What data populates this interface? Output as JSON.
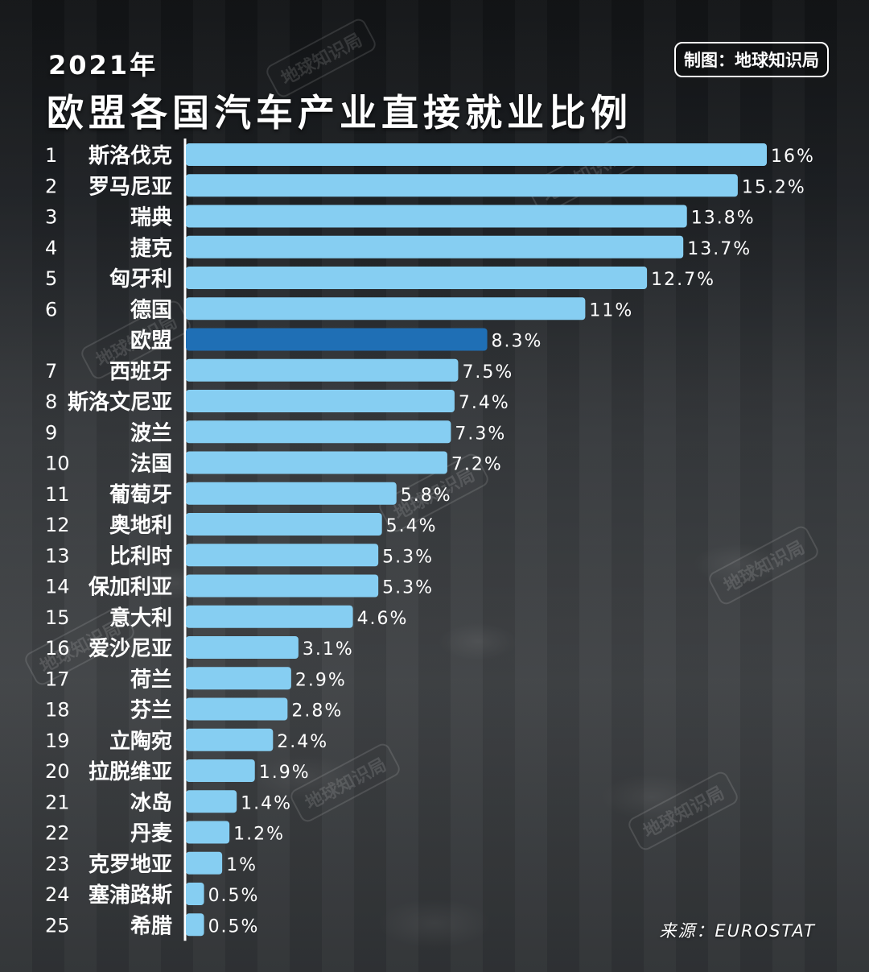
{
  "header": {
    "year": "2021年",
    "title": "欧盟各国汽车产业直接就业比例",
    "credit": "制图：地球知识局"
  },
  "footer": {
    "source": "来源：EUROSTAT"
  },
  "watermark_text": "地球知识局",
  "colors": {
    "bar": "#86cef2",
    "bar_highlight": "#1f6fb5",
    "axis_line": "#ffffff",
    "text": "#ffffff"
  },
  "chart_data": {
    "type": "bar",
    "orientation": "horizontal",
    "title": "欧盟各国汽车产业直接就业比例",
    "xlabel": "",
    "ylabel": "",
    "xlim": [
      0,
      16
    ],
    "unit": "%",
    "highlight": "欧盟",
    "rows": [
      {
        "rank": "1",
        "name": "斯洛伐克",
        "value": 16,
        "label": "16%"
      },
      {
        "rank": "2",
        "name": "罗马尼亚",
        "value": 15.2,
        "label": "15.2%"
      },
      {
        "rank": "3",
        "name": "瑞典",
        "value": 13.8,
        "label": "13.8%"
      },
      {
        "rank": "4",
        "name": "捷克",
        "value": 13.7,
        "label": "13.7%"
      },
      {
        "rank": "5",
        "name": "匈牙利",
        "value": 12.7,
        "label": "12.7%"
      },
      {
        "rank": "6",
        "name": "德国",
        "value": 11,
        "label": "11%"
      },
      {
        "rank": "",
        "name": "欧盟",
        "value": 8.3,
        "label": "8.3%"
      },
      {
        "rank": "7",
        "name": "西班牙",
        "value": 7.5,
        "label": "7.5%"
      },
      {
        "rank": "8",
        "name": "斯洛文尼亚",
        "value": 7.4,
        "label": "7.4%"
      },
      {
        "rank": "9",
        "name": "波兰",
        "value": 7.3,
        "label": "7.3%"
      },
      {
        "rank": "10",
        "name": "法国",
        "value": 7.2,
        "label": "7.2%"
      },
      {
        "rank": "11",
        "name": "葡萄牙",
        "value": 5.8,
        "label": "5.8%"
      },
      {
        "rank": "12",
        "name": "奥地利",
        "value": 5.4,
        "label": "5.4%"
      },
      {
        "rank": "13",
        "name": "比利时",
        "value": 5.3,
        "label": "5.3%"
      },
      {
        "rank": "14",
        "name": "保加利亚",
        "value": 5.3,
        "label": "5.3%"
      },
      {
        "rank": "15",
        "name": "意大利",
        "value": 4.6,
        "label": "4.6%"
      },
      {
        "rank": "16",
        "name": "爱沙尼亚",
        "value": 3.1,
        "label": "3.1%"
      },
      {
        "rank": "17",
        "name": "荷兰",
        "value": 2.9,
        "label": "2.9%"
      },
      {
        "rank": "18",
        "name": "芬兰",
        "value": 2.8,
        "label": "2.8%"
      },
      {
        "rank": "19",
        "name": "立陶宛",
        "value": 2.4,
        "label": "2.4%"
      },
      {
        "rank": "20",
        "name": "拉脱维亚",
        "value": 1.9,
        "label": "1.9%"
      },
      {
        "rank": "21",
        "name": "冰岛",
        "value": 1.4,
        "label": "1.4%"
      },
      {
        "rank": "22",
        "name": "丹麦",
        "value": 1.2,
        "label": "1.2%"
      },
      {
        "rank": "23",
        "name": "克罗地亚",
        "value": 1,
        "label": "1%"
      },
      {
        "rank": "24",
        "name": "塞浦路斯",
        "value": 0.5,
        "label": "0.5%"
      },
      {
        "rank": "25",
        "name": "希腊",
        "value": 0.5,
        "label": "0.5%"
      }
    ]
  }
}
